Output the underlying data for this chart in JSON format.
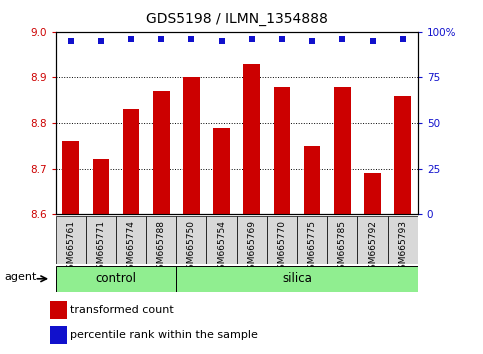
{
  "title": "GDS5198 / ILMN_1354888",
  "samples": [
    "GSM665761",
    "GSM665771",
    "GSM665774",
    "GSM665788",
    "GSM665750",
    "GSM665754",
    "GSM665769",
    "GSM665770",
    "GSM665775",
    "GSM665785",
    "GSM665792",
    "GSM665793"
  ],
  "transformed_counts": [
    8.76,
    8.72,
    8.83,
    8.87,
    8.9,
    8.79,
    8.93,
    8.88,
    8.75,
    8.88,
    8.69,
    8.86
  ],
  "percentile_ranks": [
    95,
    95,
    96,
    96,
    96,
    95,
    96,
    96,
    95,
    96,
    95,
    96
  ],
  "groups_control": [
    0,
    1,
    2,
    3
  ],
  "groups_silica": [
    4,
    5,
    6,
    7,
    8,
    9,
    10,
    11
  ],
  "ylim_left": [
    8.6,
    9.0
  ],
  "ylim_right": [
    0,
    100
  ],
  "yticks_left": [
    8.6,
    8.7,
    8.8,
    8.9,
    9.0
  ],
  "yticks_right": [
    0,
    25,
    50,
    75,
    100
  ],
  "ytick_labels_right": [
    "0",
    "25",
    "50",
    "75",
    "100%"
  ],
  "bar_color": "#cc0000",
  "dot_color": "#1111cc",
  "bar_width": 0.55,
  "grid_color": "#000000",
  "bg_color_light_green": "#90EE90",
  "bg_color_xticklabels": "#d8d8d8",
  "legend_bar_label": "transformed count",
  "legend_dot_label": "percentile rank within the sample",
  "agent_label": "agent",
  "control_label": "control",
  "silica_label": "silica",
  "tick_label_color_left": "#cc0000",
  "tick_label_color_right": "#1111cc",
  "title_fontsize": 10,
  "tick_fontsize": 7.5,
  "label_fontsize": 8.5,
  "legend_fontsize": 8
}
